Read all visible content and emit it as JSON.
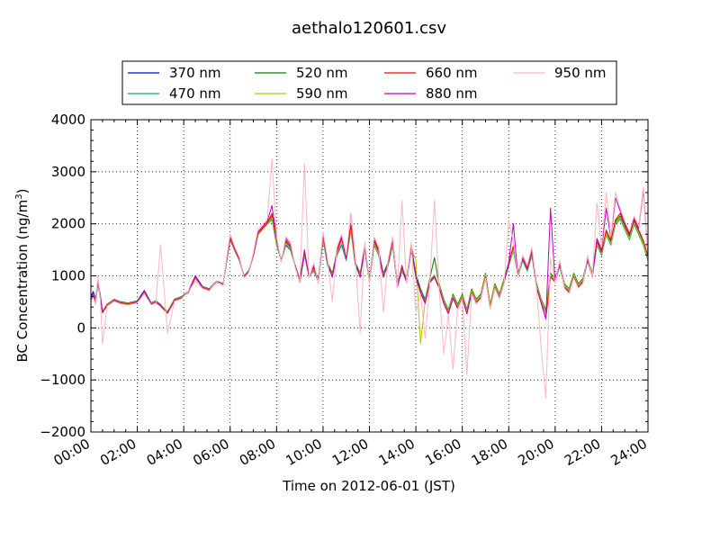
{
  "chart_data": {
    "type": "line",
    "title": "aethalo120601.csv",
    "xlabel": "Time on 2012-06-01 (JST)",
    "ylabel_main": "BC Concentration (ng/m",
    "ylabel_sup": "3",
    "ylabel_end": ")",
    "xlim": [
      0,
      24
    ],
    "ylim": [
      -2000,
      4000
    ],
    "x_ticks": [
      0,
      2,
      4,
      6,
      8,
      10,
      12,
      14,
      16,
      18,
      20,
      22,
      24
    ],
    "x_tick_labels": [
      "00:00",
      "02:00",
      "04:00",
      "06:00",
      "08:00",
      "10:00",
      "12:00",
      "14:00",
      "16:00",
      "18:00",
      "20:00",
      "22:00",
      "24:00"
    ],
    "y_ticks": [
      -2000,
      -1000,
      0,
      1000,
      2000,
      3000,
      4000
    ],
    "y_tick_labels": [
      "−2000",
      "−1000",
      "0",
      "1000",
      "2000",
      "3000",
      "4000"
    ],
    "grid": true,
    "legend_position": "top-center",
    "x_hours": [
      0.0,
      0.1,
      0.2,
      0.3,
      0.4,
      0.5,
      0.7,
      1.0,
      1.3,
      1.6,
      2.0,
      2.3,
      2.6,
      2.8,
      3.0,
      3.3,
      3.6,
      3.9,
      4.2,
      4.5,
      4.8,
      5.1,
      5.4,
      5.7,
      5.85,
      6.0,
      6.2,
      6.4,
      6.6,
      6.8,
      7.0,
      7.2,
      7.4,
      7.6,
      7.8,
      8.0,
      8.2,
      8.4,
      8.6,
      8.8,
      9.0,
      9.2,
      9.4,
      9.6,
      9.8,
      10.0,
      10.2,
      10.4,
      10.6,
      10.8,
      11.0,
      11.2,
      11.4,
      11.6,
      11.8,
      12.0,
      12.2,
      12.4,
      12.6,
      12.8,
      13.0,
      13.2,
      13.4,
      13.6,
      13.8,
      14.0,
      14.2,
      14.4,
      14.6,
      14.8,
      15.0,
      15.2,
      15.4,
      15.6,
      15.8,
      16.0,
      16.2,
      16.4,
      16.6,
      16.8,
      17.0,
      17.2,
      17.4,
      17.6,
      17.8,
      18.0,
      18.2,
      18.4,
      18.6,
      18.8,
      19.0,
      19.2,
      19.4,
      19.6,
      19.8,
      20.0,
      20.2,
      20.4,
      20.6,
      20.8,
      21.0,
      21.2,
      21.4,
      21.6,
      21.8,
      22.0,
      22.2,
      22.4,
      22.6,
      22.8,
      23.0,
      23.2,
      23.4,
      23.6,
      23.8,
      24.0
    ],
    "series": [
      {
        "name": "370 nm",
        "color": "#0000ff",
        "values": [
          600,
          700,
          550,
          900,
          650,
          300,
          450,
          550,
          500,
          480,
          520,
          720,
          480,
          520,
          450,
          300,
          550,
          600,
          700,
          1000,
          800,
          750,
          900,
          850,
          1300,
          1700,
          1500,
          1300,
          1000,
          1100,
          1400,
          1800,
          1900,
          2000,
          2100,
          1600,
          1300,
          1600,
          1500,
          1200,
          900,
          1400,
          1000,
          1100,
          900,
          1700,
          1200,
          1000,
          1400,
          1600,
          1300,
          1900,
          1200,
          1000,
          1500,
          900,
          1600,
          1400,
          1000,
          1200,
          1600,
          800,
          1100,
          900,
          1500,
          1000,
          700,
          500,
          900,
          1000,
          800,
          500,
          300,
          600,
          400,
          600,
          300,
          700,
          500,
          600,
          1000,
          400,
          800,
          600,
          900,
          1200,
          1500,
          1000,
          1300,
          1100,
          1400,
          800,
          500,
          300,
          1000,
          900,
          1200,
          800,
          700,
          1000,
          800,
          900,
          1300,
          1000,
          1600,
          1400,
          1800,
          1600,
          2000,
          2100,
          1900,
          1700,
          2000,
          1800,
          1600,
          1300
        ]
      },
      {
        "name": "470 nm",
        "color": "#00a99d",
        "values": [
          550,
          650,
          500,
          850,
          600,
          300,
          450,
          540,
          490,
          470,
          510,
          680,
          470,
          510,
          440,
          300,
          540,
          590,
          680,
          950,
          790,
          740,
          880,
          840,
          1280,
          1680,
          1480,
          1290,
          990,
          1090,
          1390,
          1790,
          1890,
          1990,
          2080,
          1590,
          1290,
          1580,
          1490,
          1190,
          890,
          1390,
          990,
          1090,
          890,
          1690,
          1190,
          990,
          1390,
          1590,
          1290,
          1880,
          1190,
          990,
          1490,
          890,
          1590,
          1390,
          990,
          1190,
          1590,
          790,
          1090,
          890,
          1490,
          990,
          690,
          490,
          890,
          990,
          790,
          490,
          290,
          590,
          390,
          590,
          290,
          690,
          490,
          590,
          990,
          390,
          790,
          590,
          890,
          1190,
          1490,
          990,
          1290,
          1090,
          1390,
          790,
          490,
          290,
          990,
          890,
          1190,
          790,
          690,
          990,
          790,
          890,
          1290,
          990,
          1590,
          1390,
          1790,
          1590,
          1990,
          2090,
          1890,
          1690,
          1990,
          1790,
          1590,
          1290
        ]
      },
      {
        "name": "520 nm",
        "color": "#008000",
        "values": [
          560,
          660,
          510,
          870,
          620,
          320,
          460,
          545,
          495,
          475,
          515,
          700,
          475,
          515,
          445,
          320,
          545,
          595,
          690,
          970,
          795,
          745,
          890,
          845,
          1290,
          1690,
          1490,
          1295,
          995,
          1095,
          1395,
          1795,
          1895,
          1995,
          2150,
          1650,
          1300,
          1650,
          1550,
          1200,
          950,
          1450,
          1000,
          1150,
          950,
          1750,
          1250,
          1050,
          1450,
          1700,
          1350,
          1950,
          1250,
          1050,
          1550,
          950,
          1650,
          1450,
          1050,
          1250,
          1650,
          850,
          1150,
          950,
          1550,
          1050,
          750,
          550,
          950,
          1350,
          850,
          550,
          350,
          650,
          450,
          650,
          350,
          750,
          550,
          650,
          1050,
          450,
          850,
          650,
          950,
          1250,
          1550,
          1050,
          1350,
          1150,
          1450,
          850,
          550,
          350,
          1050,
          950,
          1250,
          850,
          750,
          1050,
          850,
          950,
          1350,
          1050,
          1650,
          1450,
          1850,
          1650,
          2050,
          2150,
          1950,
          1750,
          2050,
          1850,
          1650,
          1350
        ]
      },
      {
        "name": "590 nm",
        "color": "#bfbf00",
        "values": [
          540,
          640,
          500,
          860,
          610,
          310,
          455,
          540,
          490,
          470,
          510,
          690,
          470,
          510,
          440,
          310,
          540,
          590,
          685,
          960,
          790,
          740,
          885,
          840,
          1285,
          1685,
          1485,
          1290,
          990,
          1090,
          1390,
          1790,
          1890,
          1990,
          2120,
          1620,
          1290,
          1620,
          1520,
          1190,
          920,
          1420,
          990,
          1120,
          920,
          1720,
          1220,
          1020,
          1420,
          1680,
          1320,
          1920,
          1220,
          1020,
          1520,
          920,
          1620,
          1420,
          1020,
          1220,
          1620,
          820,
          1120,
          920,
          1520,
          1300,
          -300,
          520,
          920,
          1020,
          820,
          520,
          320,
          620,
          420,
          620,
          320,
          720,
          520,
          620,
          1020,
          420,
          820,
          620,
          920,
          1220,
          1520,
          1020,
          1320,
          1120,
          1420,
          820,
          520,
          320,
          1020,
          920,
          1220,
          820,
          720,
          1020,
          820,
          920,
          1320,
          1020,
          1620,
          1420,
          1820,
          1620,
          2020,
          2120,
          1920,
          1720,
          2020,
          1820,
          1620,
          1320
        ]
      },
      {
        "name": "660 nm",
        "color": "#ff0000",
        "values": [
          530,
          630,
          480,
          880,
          600,
          300,
          440,
          530,
          480,
          460,
          500,
          700,
          460,
          500,
          430,
          290,
          530,
          580,
          680,
          980,
          780,
          730,
          880,
          830,
          1300,
          1720,
          1500,
          1310,
          980,
          1080,
          1400,
          1820,
          1920,
          2020,
          2200,
          1680,
          1280,
          1680,
          1560,
          1180,
          880,
          1460,
          980,
          1160,
          880,
          1780,
          1230,
          980,
          1460,
          1720,
          1330,
          1980,
          1230,
          980,
          1580,
          880,
          1680,
          1460,
          980,
          1230,
          1680,
          780,
          1160,
          880,
          1580,
          980,
          680,
          480,
          880,
          980,
          780,
          480,
          280,
          580,
          380,
          580,
          280,
          680,
          480,
          580,
          980,
          380,
          780,
          580,
          880,
          1230,
          1580,
          980,
          1330,
          1130,
          1460,
          780,
          480,
          180,
          980,
          880,
          1230,
          780,
          680,
          980,
          780,
          880,
          1330,
          980,
          1680,
          1460,
          1880,
          1680,
          2080,
          2200,
          1980,
          1780,
          2080,
          1880,
          1680,
          1380
        ]
      },
      {
        "name": "880 nm",
        "color": "#bf00bf",
        "values": [
          520,
          620,
          470,
          900,
          590,
          290,
          430,
          520,
          470,
          450,
          490,
          720,
          450,
          490,
          420,
          280,
          520,
          570,
          690,
          1000,
          770,
          720,
          890,
          820,
          1320,
          1750,
          1520,
          1330,
          970,
          1070,
          1420,
          1850,
          1950,
          2050,
          2350,
          1720,
          1270,
          1720,
          1600,
          1170,
          870,
          1500,
          970,
          1200,
          870,
          1820,
          1250,
          970,
          1500,
          1760,
          1350,
          2200,
          1250,
          970,
          1600,
          870,
          1720,
          1500,
          970,
          1250,
          1720,
          770,
          1200,
          870,
          1620,
          970,
          670,
          470,
          870,
          970,
          770,
          470,
          270,
          570,
          370,
          570,
          270,
          670,
          470,
          570,
          970,
          370,
          770,
          570,
          870,
          1250,
          2000,
          970,
          1350,
          1150,
          1500,
          770,
          470,
          170,
          2300,
          870,
          1250,
          770,
          670,
          970,
          770,
          870,
          1350,
          970,
          1720,
          1500,
          2300,
          1720,
          2500,
          2250,
          2020,
          1820,
          2120,
          1920,
          2650,
          1420
        ]
      },
      {
        "name": "950 nm",
        "color": "#ffb6c1",
        "values": [
          500,
          600,
          450,
          1000,
          570,
          -300,
          420,
          510,
          460,
          440,
          480,
          650,
          440,
          480,
          1600,
          -100,
          510,
          560,
          700,
          900,
          760,
          710,
          900,
          810,
          1350,
          1800,
          1550,
          1350,
          960,
          1060,
          1450,
          1900,
          2000,
          2100,
          3250,
          1750,
          1260,
          1750,
          1650,
          1160,
          860,
          3150,
          960,
          1250,
          860,
          1850,
          1300,
          500,
          1550,
          1800,
          1400,
          2200,
          1300,
          -100,
          1650,
          860,
          1750,
          1550,
          300,
          1300,
          1750,
          760,
          2450,
          860,
          1650,
          300,
          660,
          -200,
          860,
          2450,
          760,
          -500,
          260,
          -800,
          360,
          560,
          -900,
          660,
          460,
          560,
          960,
          360,
          760,
          560,
          860,
          2050,
          1650,
          960,
          1400,
          1200,
          1550,
          760,
          -400,
          -1350,
          1350,
          860,
          1300,
          760,
          660,
          960,
          760,
          860,
          1400,
          960,
          2400,
          1550,
          2600,
          1750,
          2600,
          2300,
          2050,
          1850,
          2150,
          1950,
          2700,
          1450
        ]
      }
    ]
  }
}
